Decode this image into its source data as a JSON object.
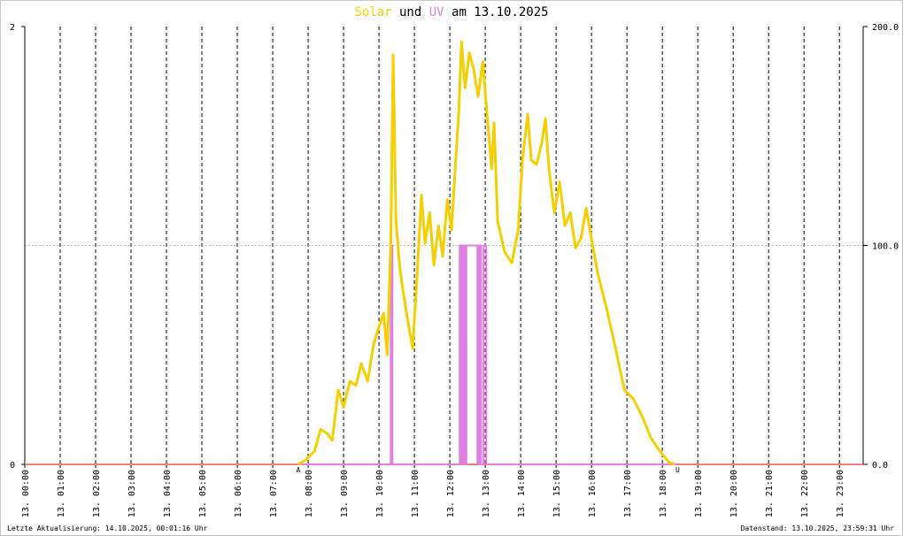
{
  "chart_data": {
    "type": "line",
    "title_joiner": "und",
    "title_suffix": "am 13.10.2025",
    "xlim": [
      0,
      23.67
    ],
    "xticks": [
      {
        "value": 0,
        "label": "13. 00:00"
      },
      {
        "value": 1,
        "label": "13. 01:00"
      },
      {
        "value": 2,
        "label": "13. 02:00"
      },
      {
        "value": 3,
        "label": "13. 03:00"
      },
      {
        "value": 4,
        "label": "13. 04:00"
      },
      {
        "value": 5,
        "label": "13. 05:00"
      },
      {
        "value": 6,
        "label": "13. 06:00"
      },
      {
        "value": 7,
        "label": "13. 07:00"
      },
      {
        "value": 8,
        "label": "13. 08:00"
      },
      {
        "value": 9,
        "label": "13. 09:00"
      },
      {
        "value": 10,
        "label": "13. 10:00"
      },
      {
        "value": 11,
        "label": "13. 11:00"
      },
      {
        "value": 12,
        "label": "13. 12:00"
      },
      {
        "value": 13,
        "label": "13. 13:00"
      },
      {
        "value": 14,
        "label": "13. 14:00"
      },
      {
        "value": 15,
        "label": "13. 15:00"
      },
      {
        "value": 16,
        "label": "13. 16:00"
      },
      {
        "value": 17,
        "label": "13. 17:00"
      },
      {
        "value": 18,
        "label": "13. 18:00"
      },
      {
        "value": 19,
        "label": "13. 19:00"
      },
      {
        "value": 20,
        "label": "13. 20:00"
      },
      {
        "value": 21,
        "label": "13. 21:00"
      },
      {
        "value": 22,
        "label": "13. 22:00"
      },
      {
        "value": 23,
        "label": "13. 23:00"
      }
    ],
    "ylim": [
      0,
      2
    ],
    "yticks": [
      0,
      2
    ],
    "y2lim": [
      0,
      200
    ],
    "y2ticks": [
      {
        "value": 0,
        "label": "0.0"
      },
      {
        "value": 100,
        "label": "100.0"
      },
      {
        "value": 200,
        "label": "200.0"
      }
    ],
    "grid": true,
    "baseline_color": "#f08070",
    "annotations": [
      {
        "text": "A",
        "x": 7.72,
        "color": "#e03030"
      },
      {
        "text": "U",
        "x": 18.43,
        "color": "#e03030"
      }
    ],
    "series": [
      {
        "name": "UV",
        "color": "#e080e0",
        "axis": "y",
        "x": [
          7.72,
          10.33,
          10.33,
          10.38,
          10.38,
          12.28,
          12.28,
          12.33,
          12.33,
          12.37,
          12.37,
          12.42,
          12.42,
          12.47,
          12.47,
          12.78,
          12.78,
          12.83,
          12.83,
          12.88,
          12.88,
          12.95,
          12.95,
          13.03,
          13.03,
          18.43
        ],
        "values": [
          0,
          0,
          1,
          1,
          0,
          0,
          1,
          1,
          0,
          0,
          1,
          1,
          0,
          0,
          1,
          1,
          0,
          0,
          1,
          1,
          0,
          0,
          1,
          1,
          0,
          0
        ]
      },
      {
        "name": "Solar",
        "color": "#f5d000",
        "axis": "y2",
        "x": [
          7.72,
          7.93,
          8.18,
          8.35,
          8.55,
          8.68,
          8.85,
          9.0,
          9.18,
          9.35,
          9.5,
          9.68,
          9.85,
          10.0,
          10.13,
          10.23,
          10.33,
          10.4,
          10.48,
          10.58,
          10.68,
          10.8,
          10.95,
          11.05,
          11.2,
          11.3,
          11.43,
          11.55,
          11.68,
          11.8,
          11.93,
          12.05,
          12.15,
          12.25,
          12.33,
          12.43,
          12.55,
          12.68,
          12.8,
          12.93,
          13.05,
          13.18,
          13.25,
          13.35,
          13.55,
          13.75,
          13.93,
          14.05,
          14.2,
          14.3,
          14.45,
          14.6,
          14.7,
          14.8,
          14.95,
          15.1,
          15.25,
          15.4,
          15.55,
          15.7,
          15.85,
          16.0,
          16.18,
          16.43,
          16.68,
          16.93,
          17.18,
          17.43,
          17.68,
          17.93,
          18.18,
          18.35
        ],
        "values": [
          0,
          2,
          6,
          16,
          14,
          11,
          34,
          26,
          38,
          36,
          46,
          38,
          55,
          63,
          69,
          50,
          99,
          187,
          111,
          91,
          79,
          67,
          53,
          79,
          123,
          101,
          115,
          91,
          109,
          95,
          121,
          107,
          135,
          160,
          193,
          172,
          188,
          180,
          168,
          184,
          160,
          135,
          156,
          111,
          97,
          92,
          107,
          139,
          160,
          139,
          137,
          147,
          158,
          135,
          115,
          129,
          109,
          115,
          99,
          103,
          117,
          103,
          87,
          71,
          53,
          34,
          30,
          22,
          12,
          6,
          1,
          0
        ]
      }
    ]
  },
  "footer": {
    "left": "Letzte Aktualisierung: 14.10.2025, 00:01:16 Uhr",
    "right": "Datenstand: 13.10.2025, 23:59:31 Uhr"
  }
}
